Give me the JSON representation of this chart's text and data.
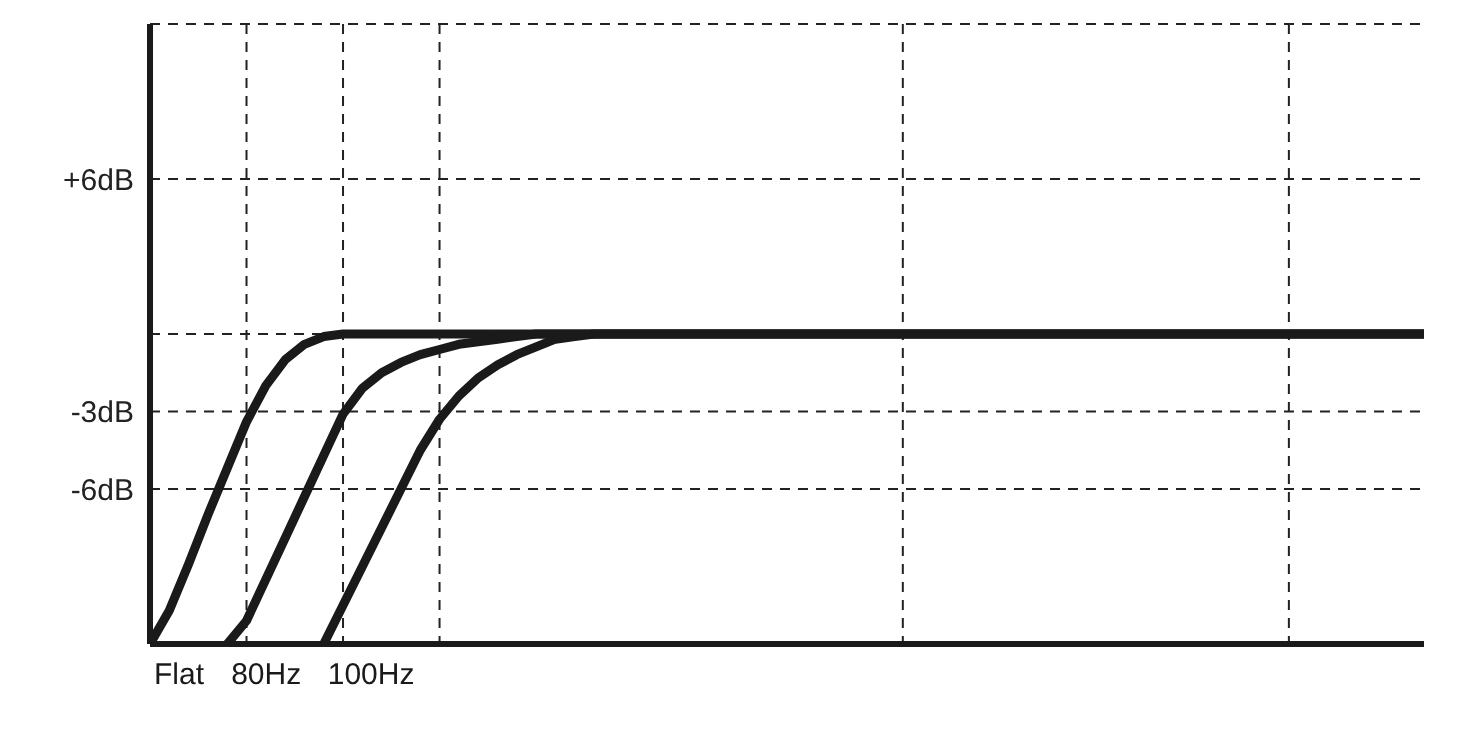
{
  "chart_data": {
    "type": "line",
    "categories": [
      null,
      null,
      null,
      null,
      null,
      null,
      null,
      null,
      null,
      null,
      null,
      null,
      null,
      null,
      null,
      null,
      null,
      null,
      null,
      null,
      null,
      null,
      null,
      null,
      null,
      null,
      null,
      null,
      null,
      null,
      null,
      null,
      null,
      null,
      null,
      null,
      null,
      null,
      null,
      null,
      null,
      null,
      null,
      null,
      null,
      null,
      null,
      null,
      null,
      null,
      null,
      null,
      null,
      null,
      null,
      null,
      null,
      null,
      null,
      null,
      null,
      null,
      null,
      null,
      null,
      null,
      null
    ],
    "ylim": [
      -12,
      12
    ],
    "yticks": [
      {
        "value": 6,
        "label": "+6dB"
      },
      {
        "value": 0,
        "label": null
      },
      {
        "value": -3,
        "label": "-3dB"
      },
      {
        "value": -6,
        "label": "-6dB"
      }
    ],
    "grid": true,
    "marker": "none",
    "line_style": "solid",
    "series": [
      {
        "name": "Flat",
        "color": "#1a1a1a",
        "values": [
          -12,
          -10.7,
          -8.9,
          -7,
          -5.2,
          -3.4,
          -2,
          -1,
          -0.4,
          -0.1,
          0,
          0,
          0,
          0,
          0,
          0,
          0,
          0,
          0,
          0,
          0,
          0,
          0,
          0,
          0,
          0,
          0,
          0,
          0,
          0,
          0,
          0,
          0,
          0,
          0,
          0,
          0,
          0,
          0,
          0,
          0,
          0,
          0,
          0,
          0,
          0,
          0,
          0,
          0,
          0,
          0,
          0,
          0,
          0,
          0,
          0,
          0,
          0,
          0,
          0,
          0,
          0,
          0,
          0,
          0,
          0,
          0
        ]
      },
      {
        "name": "80Hz",
        "color": "#1a1a1a",
        "values": [
          null,
          null,
          null,
          null,
          -12,
          -11.1,
          -9.5,
          -7.9,
          -6.3,
          -4.7,
          -3.1,
          -2.1,
          -1.5,
          -1.1,
          -0.8,
          -0.6,
          -0.4,
          -0.3,
          -0.2,
          -0.1,
          0,
          0,
          0,
          0,
          0,
          0,
          0,
          0,
          0,
          0,
          0,
          0,
          0,
          0,
          0,
          0,
          0,
          0,
          0,
          0,
          0,
          0,
          0,
          0,
          0,
          0,
          0,
          0,
          0,
          0,
          0,
          0,
          0,
          0,
          0,
          0,
          0,
          0,
          0,
          0,
          0,
          0,
          0,
          0,
          0,
          0,
          0
        ]
      },
      {
        "name": "100Hz",
        "color": "#1a1a1a",
        "values": [
          null,
          null,
          null,
          null,
          null,
          null,
          null,
          null,
          null,
          -12,
          -10.5,
          -9,
          -7.5,
          -6,
          -4.5,
          -3.3,
          -2.4,
          -1.7,
          -1.2,
          -0.8,
          -0.5,
          -0.2,
          -0.1,
          0,
          0,
          0,
          0,
          0,
          0,
          0,
          0,
          0,
          0,
          0,
          0,
          0,
          0,
          0,
          0,
          0,
          0,
          0,
          0,
          0,
          0,
          0,
          0,
          0,
          0,
          0,
          0,
          0,
          0,
          0,
          0,
          0,
          0,
          0,
          0,
          0,
          0,
          0,
          0,
          0,
          0,
          0,
          0
        ]
      }
    ]
  }
}
